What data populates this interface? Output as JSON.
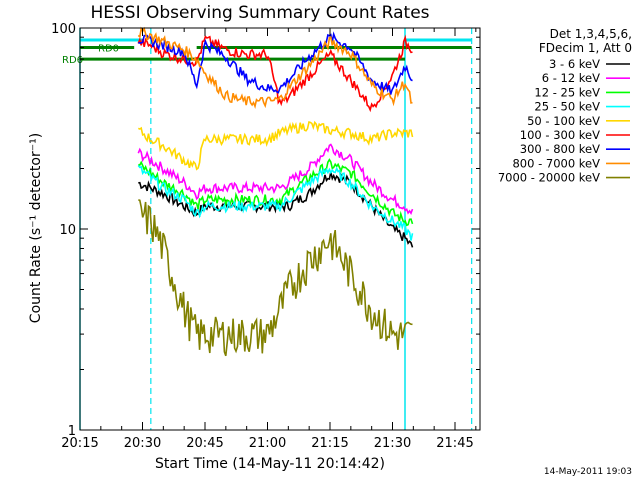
{
  "chart_data": {
    "type": "line",
    "title": "HESSI Observing Summary Count Rates",
    "xlabel": "Start Time (14-May-11 20:14:42)",
    "ylabel": "Count Rate (s⁻¹ detector⁻¹)",
    "yscale": "log",
    "xlim": [
      "20:15",
      "21:51"
    ],
    "ylim": [
      1,
      100
    ],
    "x_ticks": [
      "20:15",
      "20:30",
      "20:45",
      "21:00",
      "21:15",
      "21:30",
      "21:45"
    ],
    "y_ticks": [
      "1",
      "10",
      "100"
    ],
    "legend_position": "right",
    "legend_header": [
      "Det 1,3,4,5,6,",
      "FDecim 1, Att 0"
    ],
    "date_stamp": "14-May-2011 19:03",
    "annotations": [
      {
        "text": "RD0",
        "y": 80
      },
      {
        "text": "RD6",
        "y": 70
      }
    ],
    "markers": {
      "rd0_segments": [
        [
          "20:15",
          "20:28"
        ],
        [
          "20:43",
          "21:49"
        ]
      ],
      "rd6_line": [
        "20:15",
        "21:33"
      ],
      "cyan_top_segments": [
        [
          "20:15",
          "20:30"
        ],
        [
          "21:33",
          "21:49"
        ]
      ],
      "solid_vlines": [
        "20:15",
        "21:33"
      ],
      "dashed_vlines": [
        "20:32",
        "21:49"
      ]
    },
    "x": [
      "20:29",
      "20:32",
      "20:35",
      "20:40",
      "20:43",
      "20:45",
      "20:50",
      "20:55",
      "21:00",
      "21:03",
      "21:05",
      "21:10",
      "21:15",
      "21:20",
      "21:25",
      "21:30",
      "21:33",
      "21:35"
    ],
    "series": [
      {
        "name": "3 - 6 keV",
        "color": "#000000",
        "values": [
          17,
          16,
          15,
          13,
          12,
          13,
          13,
          13,
          13,
          13,
          13,
          15,
          19,
          17,
          13,
          10,
          9,
          8
        ]
      },
      {
        "name": "6 - 12 keV",
        "color": "#ff00ff",
        "values": [
          24,
          22,
          20,
          17,
          15,
          16,
          16,
          16,
          16,
          16,
          17,
          20,
          26,
          22,
          17,
          14,
          13,
          12
        ]
      },
      {
        "name": "12 - 25 keV",
        "color": "#00ff00",
        "values": [
          21,
          19,
          17,
          15,
          13,
          14,
          14,
          14,
          14,
          14,
          15,
          18,
          21,
          19,
          15,
          12,
          11,
          11
        ]
      },
      {
        "name": "25 - 50 keV",
        "color": "#00ffff",
        "values": [
          20,
          18,
          16,
          14,
          12,
          13,
          13,
          13,
          13,
          13,
          14,
          17,
          20,
          17,
          13,
          11,
          10,
          9
        ]
      },
      {
        "name": "50 - 100 keV",
        "color": "#ffd700",
        "values": [
          31,
          28,
          26,
          22,
          20,
          28,
          28,
          28,
          28,
          30,
          31,
          33,
          31,
          30,
          28,
          30,
          30,
          30
        ]
      },
      {
        "name": "100 - 300 keV",
        "color": "#ff0000",
        "values": [
          85,
          82,
          75,
          70,
          68,
          88,
          78,
          74,
          74,
          42,
          45,
          58,
          74,
          55,
          40,
          58,
          85,
          78
        ]
      },
      {
        "name": "300 - 800 keV",
        "color": "#0000ff",
        "values": [
          88,
          86,
          82,
          76,
          52,
          84,
          72,
          56,
          50,
          50,
          55,
          72,
          90,
          80,
          55,
          48,
          65,
          55
        ]
      },
      {
        "name": "800 - 7000 keV",
        "color": "#ff8c00",
        "values": [
          95,
          92,
          86,
          78,
          70,
          60,
          46,
          43,
          43,
          44,
          50,
          65,
          86,
          75,
          52,
          44,
          54,
          40
        ]
      },
      {
        "name": "7000 - 20000 keV",
        "color": "#808000",
        "values": [
          12,
          11,
          8,
          4,
          3,
          3,
          3,
          3,
          3,
          4,
          5,
          7,
          9,
          6,
          4,
          3,
          3,
          3
        ]
      }
    ]
  }
}
